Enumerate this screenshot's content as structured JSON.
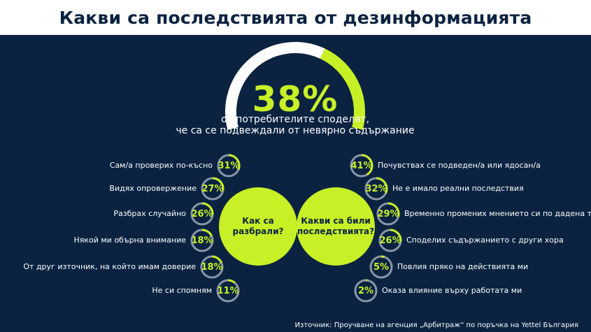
{
  "title": "Какви са последствията от дезинформацията",
  "headline": {
    "value": "38%",
    "fraction": 0.38,
    "line1": "от потребителите споделят,",
    "line2": "че са се подвеждали от невярно съдържание"
  },
  "left_circle": "Как са разбрали?",
  "right_circle_line1": "Какви са били",
  "right_circle_line2": "последствията?",
  "left_items": [
    {
      "label": "Сам/а проверих по-късно",
      "pct": "31%",
      "fraction": 0.31
    },
    {
      "label": "Видях опровержение",
      "pct": "27%",
      "fraction": 0.27
    },
    {
      "label": "Разбрах случайно",
      "pct": "26%",
      "fraction": 0.26
    },
    {
      "label": "Някой ми обърна внимание",
      "pct": "18%",
      "fraction": 0.18
    },
    {
      "label": "От друг източник, на който имам доверие",
      "pct": "18%",
      "fraction": 0.18
    },
    {
      "label": "Не си спомням",
      "pct": "11%",
      "fraction": 0.11
    }
  ],
  "right_items": [
    {
      "label": "Почувствах се подведен/а или ядосан/а",
      "pct": "41%",
      "fraction": 0.41
    },
    {
      "label": "Не е имало реални последствия",
      "pct": "32%",
      "fraction": 0.32
    },
    {
      "label": "Временно промених мнението си по дадена тема",
      "pct": "29%",
      "fraction": 0.29
    },
    {
      "label": "Споделих съдържанието с други хора",
      "pct": "26%",
      "fraction": 0.26
    },
    {
      "label": "Повлия пряко на действията ми",
      "pct": "5%",
      "fraction": 0.05
    },
    {
      "label": "Оказа влияние върху работата ми",
      "pct": "2%",
      "fraction": 0.02
    }
  ],
  "source": "Източник: Проучване на агенция „Арбитраж“ по поръчка на Yettel България",
  "colors": {
    "background": "#0b2341",
    "accent": "#c8f026",
    "ring_track": "#8a96a8",
    "white": "#ffffff"
  }
}
